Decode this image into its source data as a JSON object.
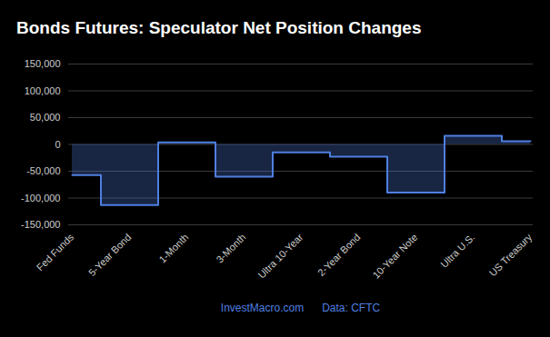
{
  "chart_data": {
    "type": "step_area",
    "title": "Bonds Futures: Speculator Net Position Changes",
    "annotations": [
      "InvestMacro.com",
      "Data: CFTC"
    ],
    "categories": [
      "Fed Funds",
      "5-Year Bond",
      "1-Month",
      "3-Month",
      "Ultra 10-Year",
      "2-Year Bond",
      "10-Year Note",
      "Ultra U.S.",
      "US Treasury"
    ],
    "values": [
      -57000,
      -113000,
      4000,
      -60000,
      -15000,
      -23000,
      -90000,
      16000,
      6000
    ],
    "color": "#4f7fe0",
    "ylim": [
      -150000,
      150000
    ],
    "yticks": [
      {
        "value": -150000,
        "label": "-150,000"
      },
      {
        "value": -100000,
        "label": "-100,000"
      },
      {
        "value": -50000,
        "label": "-50,000"
      },
      0,
      {
        "value": 50000,
        "label": "50,000"
      },
      {
        "value": 100000,
        "label": "100,000"
      },
      {
        "value": 150000,
        "label": "150,000"
      }
    ],
    "grid": true
  }
}
